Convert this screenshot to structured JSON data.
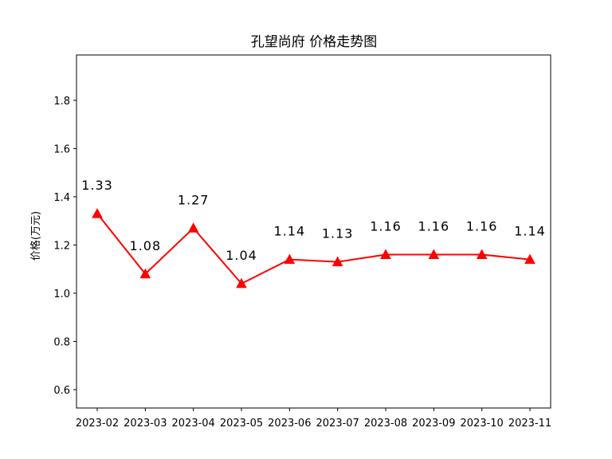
{
  "chart_data": {
    "type": "line",
    "title": "孔望尚府 价格走势图",
    "xlabel": "",
    "ylabel": "价格(万元)",
    "categories": [
      "2023-02",
      "2023-03",
      "2023-04",
      "2023-05",
      "2023-06",
      "2023-07",
      "2023-08",
      "2023-09",
      "2023-10",
      "2023-11"
    ],
    "series": [
      {
        "values": [
          1.33,
          1.08,
          1.27,
          1.04,
          1.14,
          1.13,
          1.16,
          1.16,
          1.16,
          1.14
        ],
        "data_labels": [
          "1.33",
          "1.08",
          "1.27",
          "1.04",
          "1.14",
          "1.13",
          "1.16",
          "1.16",
          "1.16",
          "1.14"
        ],
        "color": "#ff0000",
        "marker": "triangle-up"
      }
    ],
    "ylim": [
      0.524,
      1.988
    ],
    "yticks": [
      0.6,
      0.8,
      1.0,
      1.2,
      1.4,
      1.6,
      1.8
    ],
    "ytick_labels": [
      "0.6",
      "0.8",
      "1.0",
      "1.2",
      "1.4",
      "1.6",
      "1.8"
    ],
    "grid": false,
    "legend": false
  }
}
